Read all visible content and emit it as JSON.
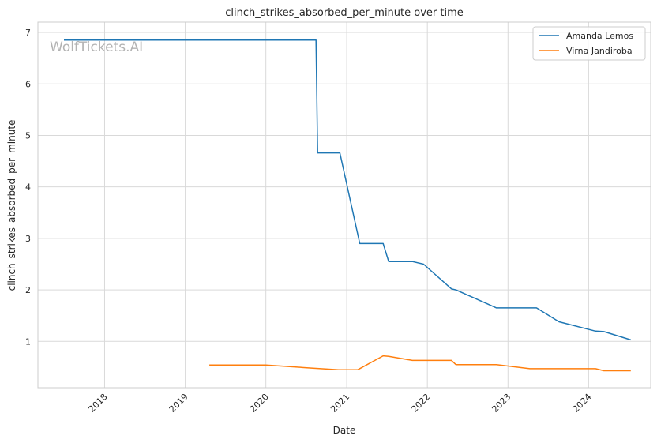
{
  "watermark": "WolfTickets.AI",
  "chart_data": {
    "type": "line",
    "title": "clinch_strikes_absorbed_per_minute over time",
    "xlabel": "Date",
    "ylabel": "clinch_strikes_absorbed_per_minute",
    "x_tick_labels": [
      "2018",
      "2019",
      "2020",
      "2021",
      "2022",
      "2023",
      "2024"
    ],
    "y_tick_labels": [
      "1",
      "2",
      "3",
      "4",
      "5",
      "6",
      "7"
    ],
    "xlim": [
      "2017-03-05",
      "2024-10-08"
    ],
    "ylim": [
      0.1,
      7.2
    ],
    "grid": true,
    "legend_position": "top-right",
    "series": [
      {
        "name": "Amanda Lemos",
        "color": "#1f77b4",
        "points": [
          [
            "2017-07-01",
            6.85
          ],
          [
            "2020-08-15",
            6.85
          ],
          [
            "2020-08-22",
            4.66
          ],
          [
            "2020-12-01",
            4.66
          ],
          [
            "2021-03-01",
            2.9
          ],
          [
            "2021-06-15",
            2.9
          ],
          [
            "2021-07-10",
            2.55
          ],
          [
            "2021-10-25",
            2.55
          ],
          [
            "2021-12-15",
            2.5
          ],
          [
            "2022-04-20",
            2.02
          ],
          [
            "2022-05-10",
            2.0
          ],
          [
            "2022-11-10",
            1.65
          ],
          [
            "2023-05-10",
            1.65
          ],
          [
            "2023-08-20",
            1.38
          ],
          [
            "2024-02-01",
            1.2
          ],
          [
            "2024-03-10",
            1.19
          ],
          [
            "2024-07-10",
            1.03
          ]
        ]
      },
      {
        "name": "Virna Jandiroba",
        "color": "#ff7f0e",
        "points": [
          [
            "2019-04-20",
            0.54
          ],
          [
            "2020-01-01",
            0.54
          ],
          [
            "2020-08-01",
            0.48
          ],
          [
            "2020-11-25",
            0.45
          ],
          [
            "2021-02-20",
            0.45
          ],
          [
            "2021-06-15",
            0.72
          ],
          [
            "2021-07-10",
            0.71
          ],
          [
            "2021-10-25",
            0.63
          ],
          [
            "2022-04-20",
            0.63
          ],
          [
            "2022-05-10",
            0.55
          ],
          [
            "2022-11-10",
            0.55
          ],
          [
            "2023-04-10",
            0.47
          ],
          [
            "2024-02-01",
            0.47
          ],
          [
            "2024-03-10",
            0.43
          ],
          [
            "2024-07-10",
            0.43
          ]
        ]
      }
    ]
  }
}
